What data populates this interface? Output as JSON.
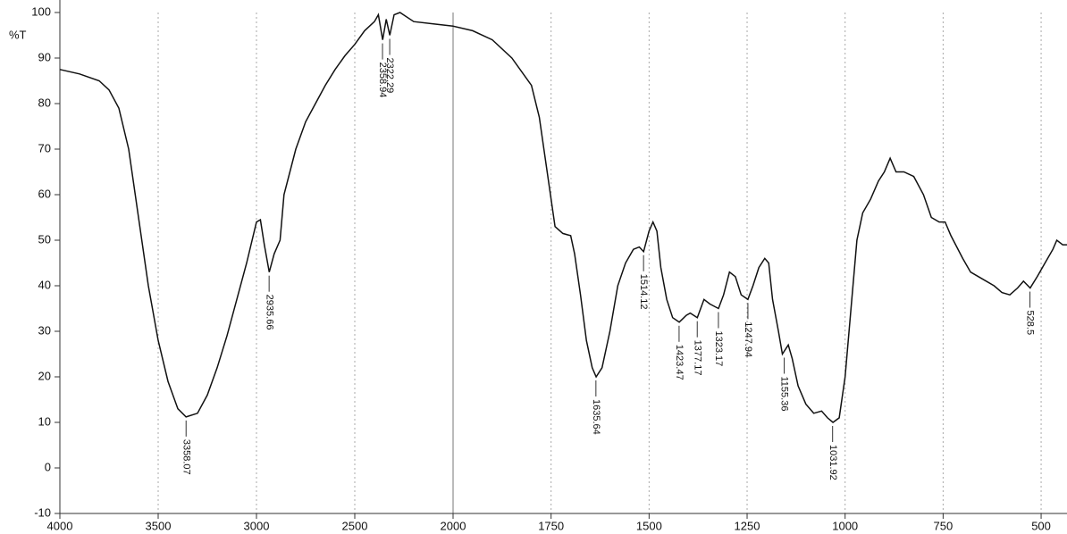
{
  "chart_data": {
    "type": "line",
    "ylabel": "%T",
    "color": "#111111",
    "xlim": [
      4000,
      434
    ],
    "ylim": [
      -10,
      100
    ],
    "x_scale_break": 2000,
    "xticks": [
      4000,
      3500,
      3000,
      2500,
      2000,
      1750,
      1500,
      1250,
      1000,
      750,
      500
    ],
    "yticks": [
      -10,
      0,
      10,
      20,
      30,
      40,
      50,
      60,
      70,
      80,
      90,
      100
    ],
    "grid": true,
    "x": [
      4000,
      3900,
      3800,
      3750,
      3700,
      3650,
      3600,
      3550,
      3500,
      3450,
      3400,
      3358,
      3300,
      3250,
      3200,
      3150,
      3100,
      3050,
      3000,
      2980,
      2960,
      2935,
      2910,
      2880,
      2860,
      2800,
      2750,
      2700,
      2650,
      2600,
      2550,
      2500,
      2450,
      2400,
      2380,
      2358,
      2340,
      2322,
      2300,
      2270,
      2200,
      2100,
      2000,
      1950,
      1900,
      1850,
      1800,
      1780,
      1760,
      1740,
      1720,
      1700,
      1690,
      1675,
      1660,
      1645,
      1635,
      1620,
      1600,
      1580,
      1560,
      1540,
      1525,
      1514,
      1500,
      1490,
      1480,
      1470,
      1455,
      1440,
      1423,
      1405,
      1395,
      1377,
      1360,
      1345,
      1323,
      1310,
      1295,
      1280,
      1265,
      1248,
      1235,
      1220,
      1205,
      1195,
      1185,
      1170,
      1160,
      1145,
      1135,
      1120,
      1100,
      1080,
      1060,
      1045,
      1031,
      1015,
      1000,
      985,
      970,
      955,
      935,
      915,
      900,
      885,
      870,
      850,
      825,
      800,
      780,
      760,
      745,
      730,
      700,
      680,
      650,
      620,
      600,
      580,
      560,
      545,
      528,
      510,
      490,
      470,
      460,
      445,
      434
    ],
    "values": [
      87.5,
      86.5,
      85,
      83,
      79,
      70,
      55,
      40,
      28,
      19,
      13,
      11.2,
      12,
      16,
      22,
      29,
      37,
      45,
      54,
      54.5,
      49,
      43,
      47,
      50,
      60,
      70,
      76,
      80,
      84,
      87.5,
      90.5,
      93,
      96,
      98,
      99.5,
      94,
      98.5,
      95,
      99.5,
      100,
      98,
      97.5,
      97,
      96,
      94,
      90,
      84,
      77,
      65,
      53,
      51.5,
      51,
      47,
      38,
      28,
      22,
      20,
      22,
      30,
      40,
      45,
      48,
      48.5,
      47.5,
      52,
      54,
      52,
      44,
      37,
      33,
      32,
      33.5,
      34,
      33,
      37,
      36,
      35,
      38,
      43,
      42,
      38,
      37,
      40,
      44,
      46,
      45,
      37,
      30,
      25,
      27,
      24,
      18,
      14,
      12,
      12.5,
      11,
      10,
      11,
      20,
      35,
      50,
      56,
      59,
      63,
      65,
      68,
      65,
      65,
      64,
      60,
      55,
      54,
      54,
      51,
      46,
      43,
      41.5,
      40,
      38.5,
      38,
      39.5,
      41,
      39.5,
      42,
      45,
      48,
      50,
      49,
      49
    ],
    "annotations": [
      {
        "x": 3358.07,
        "y": 11.2
      },
      {
        "x": 2935.66,
        "y": 43
      },
      {
        "x": 2358.94,
        "y": 94
      },
      {
        "x": 2322.29,
        "y": 95
      },
      {
        "x": 1635.64,
        "y": 20
      },
      {
        "x": 1514.12,
        "y": 47.5
      },
      {
        "x": 1423.47,
        "y": 32
      },
      {
        "x": 1377.17,
        "y": 33
      },
      {
        "x": 1323.17,
        "y": 35
      },
      {
        "x": 1247.94,
        "y": 37
      },
      {
        "x": 1155.36,
        "y": 25
      },
      {
        "x": 1031.92,
        "y": 10
      },
      {
        "x": 528.5,
        "y": 39.5
      }
    ]
  }
}
